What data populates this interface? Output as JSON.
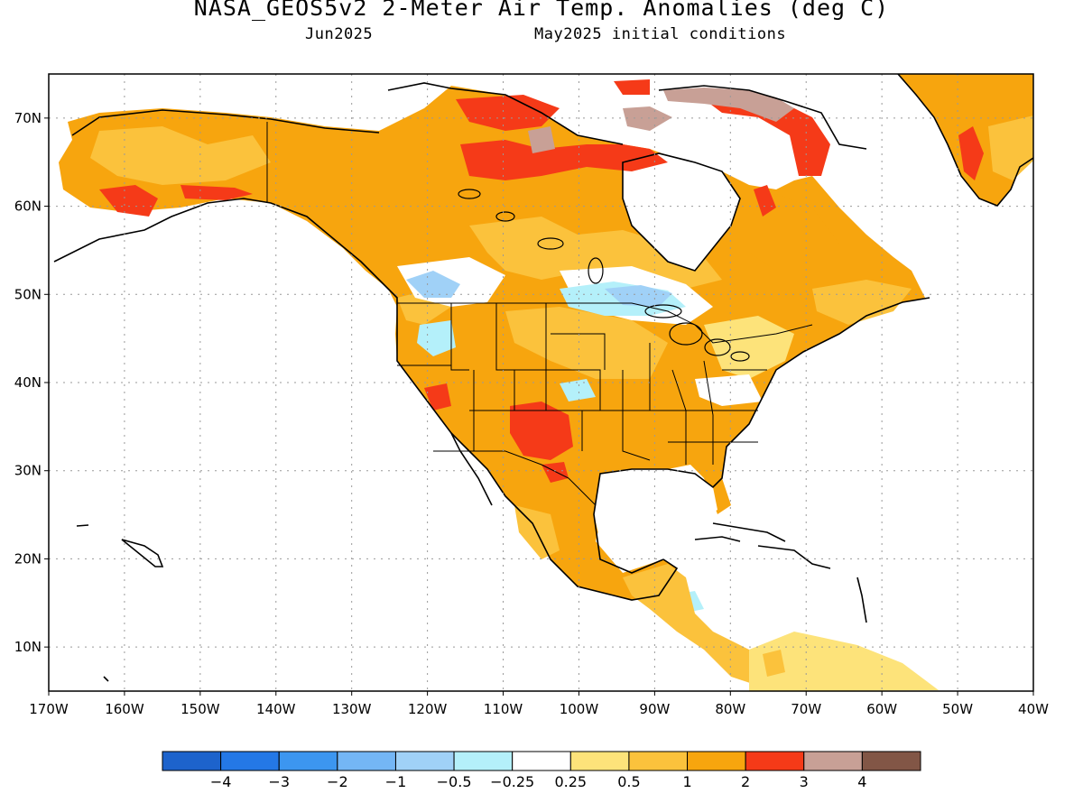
{
  "title": "NASA_GEOS5v2 2-Meter Air Temp. Anomalies (deg C)",
  "subtitle_left": "Jun2025",
  "subtitle_right": "May2025 initial conditions",
  "map": {
    "lon_range": [
      -170,
      -40
    ],
    "lat_range": [
      5,
      75
    ],
    "lon_ticks": [
      "170W",
      "160W",
      "150W",
      "140W",
      "130W",
      "120W",
      "110W",
      "100W",
      "90W",
      "80W",
      "70W",
      "60W",
      "50W",
      "40W"
    ],
    "lat_ticks": [
      "10N",
      "20N",
      "30N",
      "40N",
      "50N",
      "60N",
      "70N"
    ],
    "gridlines": "dotted",
    "projection": "lat-lon"
  },
  "colorbar": {
    "bins": [
      {
        "color": "#1d63cc"
      },
      {
        "color": "#2478e6"
      },
      {
        "color": "#3c96f0"
      },
      {
        "color": "#74b6f5"
      },
      {
        "color": "#a0d1f7"
      },
      {
        "color": "#b4f0fa"
      },
      {
        "color": "#ffffff"
      },
      {
        "color": "#fde37a"
      },
      {
        "color": "#fbc23c"
      },
      {
        "color": "#f7a50e"
      },
      {
        "color": "#f53a18"
      },
      {
        "color": "#c8a096"
      },
      {
        "color": "#825646"
      }
    ],
    "labels": [
      "−4",
      "−3",
      "−2",
      "−1",
      "−0.5",
      "−0.25",
      "0.25",
      "0.5",
      "1",
      "2",
      "3",
      "4"
    ]
  },
  "colors": {
    "land_outline": "#000000",
    "ocean": "#ffffff",
    "light_orange": "#fbc23c",
    "orange": "#f7a50e",
    "red": "#f53a18",
    "brown": "#c8a096",
    "pale_yellow": "#fde37a",
    "light_blue": "#b4f0fa",
    "blue": "#a0d1f7"
  }
}
